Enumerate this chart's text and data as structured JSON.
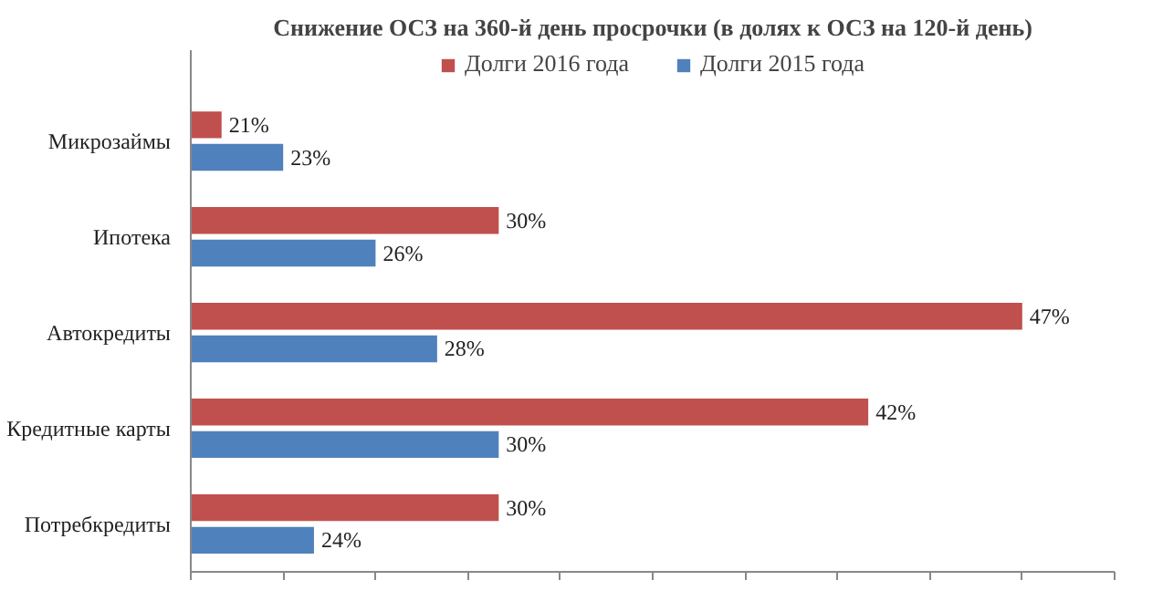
{
  "chart_data": {
    "type": "bar",
    "orientation": "horizontal",
    "title": "Снижение ОСЗ на 360-й день просрочки (в долях к ОСЗ на 120-й день)",
    "categories": [
      "Микрозаймы",
      "Ипотека",
      "Автокредиты",
      "Кредитные карты",
      "Потребкредиты"
    ],
    "series": [
      {
        "name": "Долги 2016 года",
        "color": "#c0504d",
        "values": [
          21,
          30,
          47,
          42,
          30
        ],
        "value_labels": [
          "21%",
          "30%",
          "47%",
          "42%",
          "30%"
        ]
      },
      {
        "name": "Долги 2015 года",
        "color": "#4f81bd",
        "values": [
          23,
          26,
          28,
          30,
          24
        ],
        "value_labels": [
          "23%",
          "26%",
          "28%",
          "30%",
          "24%"
        ]
      }
    ],
    "xlim": [
      20,
      50
    ],
    "xticks": [
      {
        "value": 20,
        "label": null
      },
      {
        "value": 23,
        "label": null
      },
      {
        "value": 26,
        "label": null
      },
      {
        "value": 29,
        "label": null
      },
      {
        "value": 32,
        "label": null
      },
      {
        "value": 35,
        "label": null
      },
      {
        "value": 38,
        "label": null
      },
      {
        "value": 41,
        "label": null
      },
      {
        "value": 44,
        "label": null
      },
      {
        "value": 47,
        "label": null
      },
      {
        "value": 50,
        "label": null
      }
    ],
    "tick_labels": "y",
    "grid": false,
    "legend": "top"
  }
}
